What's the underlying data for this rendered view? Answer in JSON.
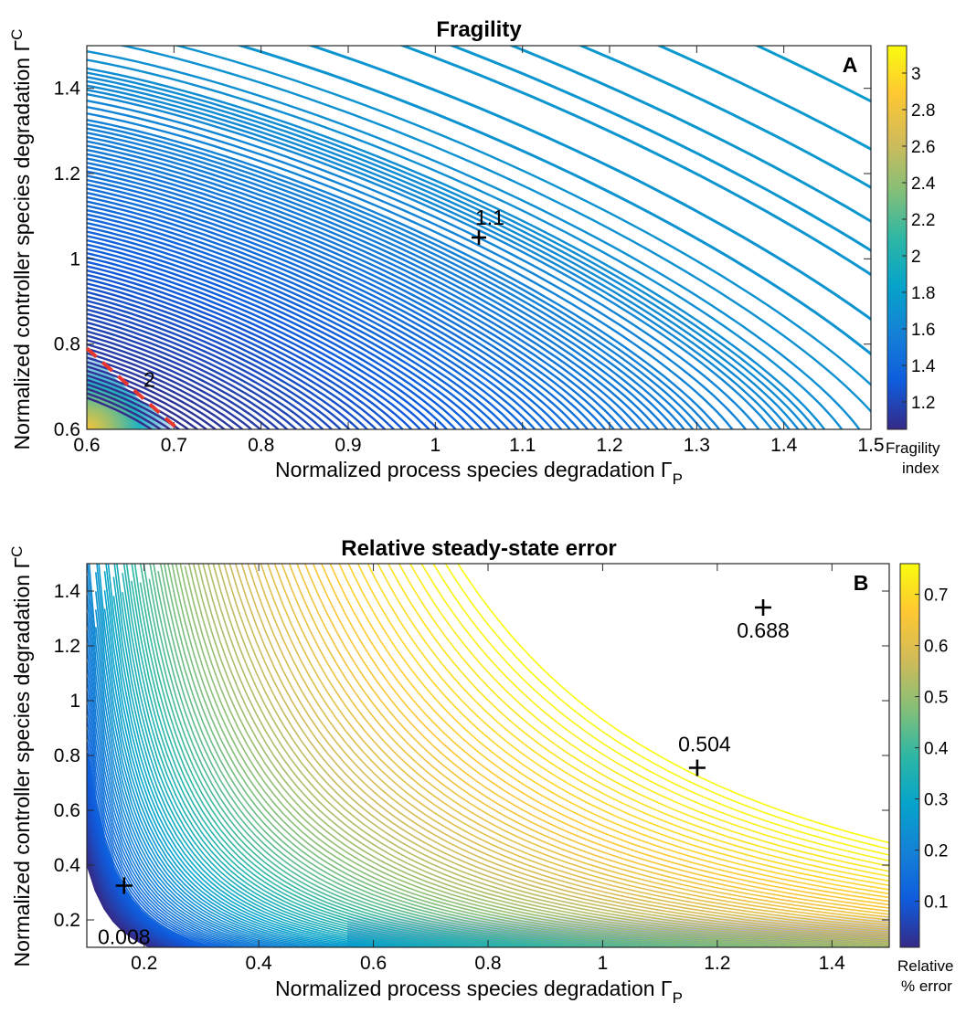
{
  "chart_data": [
    {
      "type": "contour",
      "panel_letter": "A",
      "title": "Fragility",
      "xlabel": "Normalized process species degradation Γ",
      "xlabel_sub": "P",
      "ylabel": "Normalized controller species degradation Γ",
      "ylabel_sub": "C",
      "xlim": [
        0.6,
        1.5
      ],
      "ylim": [
        0.6,
        1.5
      ],
      "x_ticks": [
        "0.6",
        "0.7",
        "0.8",
        "0.9",
        "1",
        "1.1",
        "1.2",
        "1.3",
        "1.4",
        "1.5"
      ],
      "x_tick_values": [
        0.6,
        0.7,
        0.8,
        0.9,
        1.0,
        1.1,
        1.2,
        1.3,
        1.4,
        1.5
      ],
      "y_ticks": [
        "0.6",
        "0.8",
        "1",
        "1.2",
        "1.4"
      ],
      "y_tick_values": [
        0.6,
        0.8,
        1.0,
        1.2,
        1.4
      ],
      "colorbar": {
        "label_line1": "Fragility",
        "label_line2": "index",
        "min": 1.05,
        "max": 3.15,
        "ticks": [
          "1.2",
          "1.4",
          "1.6",
          "1.8",
          "2",
          "2.2",
          "2.4",
          "2.6",
          "2.8",
          "3"
        ],
        "tick_values": [
          1.2,
          1.4,
          1.6,
          1.8,
          2.0,
          2.2,
          2.4,
          2.6,
          2.8,
          3.0
        ]
      },
      "contour_level_params": [
        2.7,
        2.46,
        2.28,
        2.14,
        2.03,
        1.94,
        1.87,
        1.81,
        1.76,
        1.72,
        1.65,
        1.6,
        1.56,
        1.53,
        1.5,
        1.48,
        1.46,
        1.45,
        1.44,
        1.43,
        1.42,
        1.41,
        1.4,
        1.385,
        1.37,
        1.355,
        1.34,
        1.33,
        1.32,
        1.31,
        1.3,
        1.29,
        1.28,
        1.27,
        1.26,
        1.25,
        1.24,
        1.23,
        1.22,
        1.21,
        1.2,
        1.19,
        1.18,
        1.17,
        1.16,
        1.15,
        1.14,
        1.13,
        1.12,
        1.11,
        1.1,
        1.09,
        1.08,
        1.07,
        1.06,
        1.05,
        1.04,
        1.03,
        1.02,
        1.01,
        1.0,
        0.99,
        0.98,
        0.97,
        0.96,
        0.95,
        0.94,
        0.93,
        0.92,
        0.91,
        0.9,
        0.89,
        0.88,
        0.87,
        0.86,
        0.85,
        0.84,
        0.83,
        0.82,
        0.81,
        0.8,
        0.79,
        0.78,
        0.77,
        0.76,
        0.75,
        0.74,
        0.73,
        0.72,
        0.71,
        0.7
      ],
      "markers": [
        {
          "x": 1.05,
          "y": 1.05,
          "label": "1.1",
          "label_pos": "above-right"
        }
      ],
      "dashed_line": {
        "label": "2",
        "x": [
          0.6,
          0.705
        ],
        "y": [
          0.79,
          0.6
        ],
        "color": "#e8372f"
      }
    },
    {
      "type": "contour",
      "panel_letter": "B",
      "title": "Relative steady-state error",
      "xlabel": "Normalized process species degradation Γ",
      "xlabel_sub": "P",
      "ylabel": "Normalized controller species degradation Γ",
      "ylabel_sub": "C",
      "xlim": [
        0.1,
        1.5
      ],
      "ylim": [
        0.1,
        1.5
      ],
      "x_ticks": [
        "0.2",
        "0.4",
        "0.6",
        "0.8",
        "1",
        "1.2",
        "1.4"
      ],
      "x_tick_values": [
        0.2,
        0.4,
        0.6,
        0.8,
        1.0,
        1.2,
        1.4
      ],
      "y_ticks": [
        "0.2",
        "0.4",
        "0.6",
        "0.8",
        "1",
        "1.2",
        "1.4"
      ],
      "y_tick_values": [
        0.2,
        0.4,
        0.6,
        0.8,
        1.0,
        1.2,
        1.4
      ],
      "colorbar": {
        "label_line1": "Relative",
        "label_line2": "% error",
        "min": 0.01,
        "max": 0.76,
        "ticks": [
          "0.1",
          "0.2",
          "0.3",
          "0.4",
          "0.5",
          "0.6",
          "0.7"
        ],
        "tick_values": [
          0.1,
          0.2,
          0.3,
          0.4,
          0.5,
          0.6,
          0.7
        ]
      },
      "contour_levels": {
        "from": 0.01,
        "to": 0.76,
        "count": 100
      },
      "markers": [
        {
          "x": 0.165,
          "y": 0.325,
          "label": "0.008",
          "label_pos": "below-left"
        },
        {
          "x": 1.165,
          "y": 0.755,
          "label": "0.504",
          "label_pos": "above"
        },
        {
          "x": 1.28,
          "y": 1.34,
          "label": "0.688",
          "label_pos": "below"
        }
      ]
    }
  ]
}
